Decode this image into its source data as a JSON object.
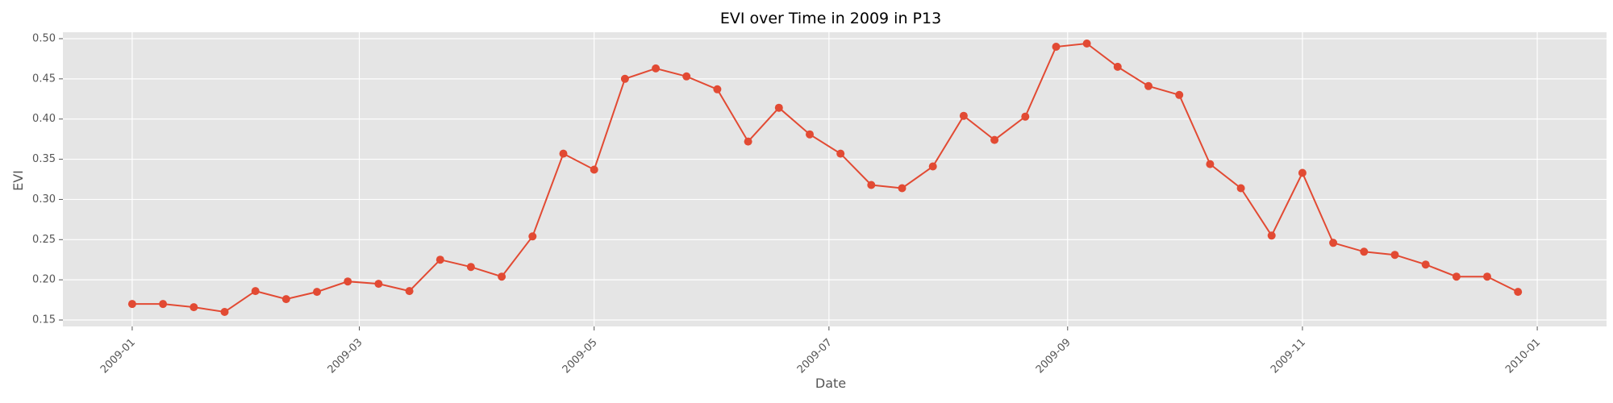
{
  "chart_data": {
    "type": "line",
    "title": "EVI over Time in 2009 in P13",
    "xlabel": "Date",
    "ylabel": "EVI",
    "xlim": [
      "2008-12-14",
      "2010-01-19"
    ],
    "ylim": [
      0.142,
      0.508
    ],
    "grid": true,
    "legend": "none",
    "x_ticks": [
      "2009-01-01",
      "2009-03-01",
      "2009-05-01",
      "2009-07-01",
      "2009-09-01",
      "2009-11-01",
      "2010-01-01"
    ],
    "x_tick_labels": [
      "2009-01",
      "2009-03",
      "2009-05",
      "2009-07",
      "2009-09",
      "2009-11",
      "2010-01"
    ],
    "y_ticks": [
      0.15,
      0.2,
      0.25,
      0.3,
      0.35,
      0.4,
      0.45,
      0.5
    ],
    "y_tick_labels": [
      "0.15",
      "0.20",
      "0.25",
      "0.30",
      "0.35",
      "0.40",
      "0.45",
      "0.50"
    ],
    "series": [
      {
        "color": "#E24A33",
        "x": [
          "2009-01-01",
          "2009-01-09",
          "2009-01-17",
          "2009-01-25",
          "2009-02-02",
          "2009-02-10",
          "2009-02-18",
          "2009-02-26",
          "2009-03-06",
          "2009-03-14",
          "2009-03-22",
          "2009-03-30",
          "2009-04-07",
          "2009-04-15",
          "2009-04-23",
          "2009-05-01",
          "2009-05-09",
          "2009-05-17",
          "2009-05-25",
          "2009-06-02",
          "2009-06-10",
          "2009-06-18",
          "2009-06-26",
          "2009-07-04",
          "2009-07-12",
          "2009-07-20",
          "2009-07-28",
          "2009-08-05",
          "2009-08-13",
          "2009-08-21",
          "2009-08-29",
          "2009-09-06",
          "2009-09-14",
          "2009-09-22",
          "2009-09-30",
          "2009-10-08",
          "2009-10-16",
          "2009-10-24",
          "2009-11-01",
          "2009-11-09",
          "2009-11-17",
          "2009-11-25",
          "2009-12-03",
          "2009-12-11",
          "2009-12-19",
          "2009-12-27"
        ],
        "y": [
          0.17,
          0.17,
          0.166,
          0.16,
          0.186,
          0.176,
          0.185,
          0.198,
          0.195,
          0.186,
          0.225,
          0.216,
          0.204,
          0.254,
          0.357,
          0.337,
          0.45,
          0.463,
          0.453,
          0.437,
          0.372,
          0.414,
          0.381,
          0.357,
          0.318,
          0.314,
          0.341,
          0.404,
          0.374,
          0.403,
          0.49,
          0.494,
          0.465,
          0.441,
          0.43,
          0.344,
          0.314,
          0.255,
          0.333,
          0.246,
          0.235,
          0.231,
          0.219,
          0.204,
          0.204,
          0.185
        ]
      }
    ]
  }
}
